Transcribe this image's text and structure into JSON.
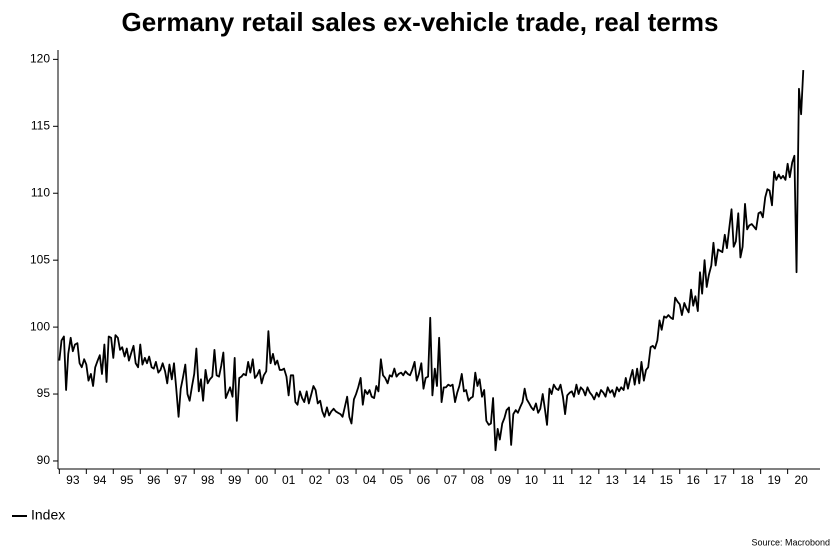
{
  "chart_data": {
    "type": "line",
    "title": "Germany retail sales ex-vehicle trade, real terms",
    "source": "Source: Macrobond",
    "xlim": [
      1992.95,
      2021.2
    ],
    "ylim": [
      89.4,
      120.7
    ],
    "yticks": [
      90,
      95,
      100,
      105,
      110,
      115,
      120
    ],
    "xticks": [
      {
        "value": 1993,
        "label": "93"
      },
      {
        "value": 1994,
        "label": "94"
      },
      {
        "value": 1995,
        "label": "95"
      },
      {
        "value": 1996,
        "label": "96"
      },
      {
        "value": 1997,
        "label": "97"
      },
      {
        "value": 1998,
        "label": "98"
      },
      {
        "value": 1999,
        "label": "99"
      },
      {
        "value": 2000,
        "label": "00"
      },
      {
        "value": 2001,
        "label": "01"
      },
      {
        "value": 2002,
        "label": "02"
      },
      {
        "value": 2003,
        "label": "03"
      },
      {
        "value": 2004,
        "label": "04"
      },
      {
        "value": 2005,
        "label": "05"
      },
      {
        "value": 2006,
        "label": "06"
      },
      {
        "value": 2007,
        "label": "07"
      },
      {
        "value": 2008,
        "label": "08"
      },
      {
        "value": 2009,
        "label": "09"
      },
      {
        "value": 2010,
        "label": "10"
      },
      {
        "value": 2011,
        "label": "11"
      },
      {
        "value": 2012,
        "label": "12"
      },
      {
        "value": 2013,
        "label": "13"
      },
      {
        "value": 2014,
        "label": "14"
      },
      {
        "value": 2015,
        "label": "15"
      },
      {
        "value": 2016,
        "label": "16"
      },
      {
        "value": 2017,
        "label": "17"
      },
      {
        "value": 2018,
        "label": "18"
      },
      {
        "value": 2019,
        "label": "19"
      },
      {
        "value": 2020,
        "label": "20"
      }
    ],
    "legend": "bottom-left",
    "x": [
      1993.0,
      1993.08,
      1993.17,
      1993.25,
      1993.33,
      1993.42,
      1993.5,
      1993.58,
      1993.67,
      1993.75,
      1993.83,
      1993.92,
      1994.0,
      1994.08,
      1994.17,
      1994.25,
      1994.33,
      1994.42,
      1994.5,
      1994.58,
      1994.67,
      1994.75,
      1994.83,
      1994.92,
      1995.0,
      1995.08,
      1995.17,
      1995.25,
      1995.33,
      1995.42,
      1995.5,
      1995.58,
      1995.67,
      1995.75,
      1995.83,
      1995.92,
      1996.0,
      1996.08,
      1996.17,
      1996.25,
      1996.33,
      1996.42,
      1996.5,
      1996.58,
      1996.67,
      1996.75,
      1996.83,
      1996.92,
      1997.0,
      1997.08,
      1997.17,
      1997.25,
      1997.33,
      1997.42,
      1997.5,
      1997.58,
      1997.67,
      1997.75,
      1997.83,
      1997.92,
      1998.0,
      1998.08,
      1998.17,
      1998.25,
      1998.33,
      1998.42,
      1998.5,
      1998.58,
      1998.67,
      1998.75,
      1998.83,
      1998.92,
      1999.0,
      1999.08,
      1999.17,
      1999.25,
      1999.33,
      1999.42,
      1999.5,
      1999.58,
      1999.67,
      1999.75,
      1999.83,
      1999.92,
      2000.0,
      2000.08,
      2000.17,
      2000.25,
      2000.33,
      2000.42,
      2000.5,
      2000.58,
      2000.67,
      2000.75,
      2000.83,
      2000.92,
      2001.0,
      2001.08,
      2001.17,
      2001.25,
      2001.33,
      2001.42,
      2001.5,
      2001.58,
      2001.67,
      2001.75,
      2001.83,
      2001.92,
      2002.0,
      2002.08,
      2002.17,
      2002.25,
      2002.33,
      2002.42,
      2002.5,
      2002.58,
      2002.67,
      2002.75,
      2002.83,
      2002.92,
      2003.0,
      2003.08,
      2003.17,
      2003.25,
      2003.33,
      2003.42,
      2003.5,
      2003.58,
      2003.67,
      2003.75,
      2003.83,
      2003.92,
      2004.0,
      2004.08,
      2004.17,
      2004.25,
      2004.33,
      2004.42,
      2004.5,
      2004.58,
      2004.67,
      2004.75,
      2004.83,
      2004.92,
      2005.0,
      2005.08,
      2005.17,
      2005.25,
      2005.33,
      2005.42,
      2005.5,
      2005.58,
      2005.67,
      2005.75,
      2005.83,
      2005.92,
      2006.0,
      2006.08,
      2006.17,
      2006.25,
      2006.33,
      2006.42,
      2006.5,
      2006.58,
      2006.67,
      2006.75,
      2006.83,
      2006.92,
      2007.0,
      2007.08,
      2007.17,
      2007.25,
      2007.33,
      2007.42,
      2007.5,
      2007.58,
      2007.67,
      2007.75,
      2007.83,
      2007.92,
      2008.0,
      2008.08,
      2008.17,
      2008.25,
      2008.33,
      2008.42,
      2008.5,
      2008.58,
      2008.67,
      2008.75,
      2008.83,
      2008.92,
      2009.0,
      2009.08,
      2009.17,
      2009.25,
      2009.33,
      2009.42,
      2009.5,
      2009.58,
      2009.67,
      2009.75,
      2009.83,
      2009.92,
      2010.0,
      2010.08,
      2010.17,
      2010.25,
      2010.33,
      2010.42,
      2010.5,
      2010.58,
      2010.67,
      2010.75,
      2010.83,
      2010.92,
      2011.0,
      2011.08,
      2011.17,
      2011.25,
      2011.33,
      2011.42,
      2011.5,
      2011.58,
      2011.67,
      2011.75,
      2011.83,
      2011.92,
      2012.0,
      2012.08,
      2012.17,
      2012.25,
      2012.33,
      2012.42,
      2012.5,
      2012.58,
      2012.67,
      2012.75,
      2012.83,
      2012.92,
      2013.0,
      2013.08,
      2013.17,
      2013.25,
      2013.33,
      2013.42,
      2013.5,
      2013.58,
      2013.67,
      2013.75,
      2013.83,
      2013.92,
      2014.0,
      2014.08,
      2014.17,
      2014.25,
      2014.33,
      2014.42,
      2014.5,
      2014.58,
      2014.67,
      2014.75,
      2014.83,
      2014.92,
      2015.0,
      2015.08,
      2015.17,
      2015.25,
      2015.33,
      2015.42,
      2015.5,
      2015.58,
      2015.67,
      2015.75,
      2015.83,
      2015.92,
      2016.0,
      2016.08,
      2016.17,
      2016.25,
      2016.33,
      2016.42,
      2016.5,
      2016.58,
      2016.67,
      2016.75,
      2016.83,
      2016.92,
      2017.0,
      2017.08,
      2017.17,
      2017.25,
      2017.33,
      2017.42,
      2017.5,
      2017.58,
      2017.67,
      2017.75,
      2017.83,
      2017.92,
      2018.0,
      2018.08,
      2018.17,
      2018.25,
      2018.33,
      2018.42,
      2018.5,
      2018.58,
      2018.67,
      2018.75,
      2018.83,
      2018.92,
      2019.0,
      2019.08,
      2019.17,
      2019.25,
      2019.33,
      2019.42,
      2019.5,
      2019.58,
      2019.67,
      2019.75,
      2019.83,
      2019.92,
      2020.0,
      2020.08,
      2020.17,
      2020.25,
      2020.33,
      2020.42,
      2020.5,
      2020.58
    ],
    "series": [
      {
        "name": "Index",
        "color": "#000000",
        "values": [
          97.5,
          99,
          99.3,
          95.3,
          98,
          99.2,
          98.2,
          98.7,
          98.8,
          97.3,
          97,
          97.6,
          97.2,
          96,
          96.5,
          95.6,
          97,
          97.5,
          97.9,
          96.5,
          98.7,
          95.9,
          99.3,
          99.2,
          97.7,
          99.4,
          99.2,
          98.3,
          98.5,
          97.8,
          98.4,
          97.5,
          98.1,
          98.6,
          97.3,
          97,
          98.7,
          97.2,
          97.7,
          97.3,
          97.8,
          97,
          96.9,
          97.4,
          96.6,
          96.8,
          97.3,
          96.7,
          95.8,
          97.2,
          96.1,
          97.3,
          95.5,
          93.3,
          95.4,
          96.2,
          97.2,
          95,
          94.5,
          95.6,
          96.5,
          98.4,
          95.2,
          96.1,
          94.5,
          96.8,
          95.8,
          96.1,
          96.3,
          98.3,
          96.4,
          96.3,
          97.1,
          98.1,
          94.7,
          95.1,
          95.5,
          94.8,
          97.7,
          93,
          96.2,
          96.3,
          96.5,
          96.4,
          97.4,
          96.6,
          97.6,
          96.2,
          96.4,
          96.8,
          95.8,
          96.4,
          96.7,
          99.7,
          97.3,
          98,
          97.2,
          97.5,
          96.8,
          96.8,
          96.9,
          96.3,
          94.9,
          96.4,
          96.4,
          94.4,
          94.2,
          95.2,
          94.7,
          94.4,
          95.2,
          94.3,
          94.9,
          95.6,
          95.3,
          94.3,
          94.5,
          93.7,
          93.3,
          94,
          93.4,
          93.7,
          93.9,
          93.7,
          93.6,
          93.5,
          93.3,
          94,
          94.8,
          93.3,
          92.8,
          94.6,
          95,
          95.5,
          96.2,
          94.2,
          95.3,
          95,
          95.3,
          94.8,
          94.7,
          95.6,
          95.2,
          97.6,
          96.4,
          96.2,
          95.8,
          96.4,
          96.3,
          96.9,
          96.3,
          96.5,
          96.6,
          96.4,
          96.7,
          96.5,
          96.4,
          96.8,
          97.4,
          96,
          96.5,
          97.3,
          95.4,
          96.2,
          96.3,
          100.7,
          94.9,
          96.9,
          95.6,
          99.2,
          94.4,
          95.5,
          95.5,
          95.7,
          95.6,
          95.7,
          94.4,
          95.1,
          95.6,
          96.5,
          95.2,
          95.3,
          94.5,
          94.7,
          94.8,
          96.6,
          95.6,
          96.1,
          94.8,
          95.3,
          93,
          92.7,
          92.8,
          94.7,
          90.8,
          92.4,
          91.6,
          92.8,
          93.2,
          93.8,
          94,
          91.2,
          93.5,
          93.8,
          93.6,
          94,
          94.4,
          95.4,
          94.6,
          94.3,
          94,
          93.8,
          94.3,
          93.6,
          93.9,
          95,
          93.9,
          92.7,
          95.4,
          95,
          95.7,
          95.4,
          95.3,
          95.7,
          94.8,
          93.5,
          94.9,
          95.1,
          95.2,
          94.8,
          95.7,
          95,
          95.5,
          95.3,
          94.9,
          95.5,
          95.1,
          94.9,
          94.6,
          95.1,
          94.8,
          95.3,
          95.1,
          94.8,
          95.5,
          95.1,
          95.3,
          94.8,
          95.5,
          95.2,
          95.5,
          95.3,
          96.2,
          95.4,
          96.2,
          96.8,
          95.7,
          96.9,
          95.8,
          97.4,
          96,
          96.8,
          97,
          98.5,
          98.6,
          98.4,
          99,
          100.5,
          99.8,
          100.8,
          100.7,
          100.9,
          100.7,
          100.6,
          102.2,
          101.9,
          101.7,
          100.9,
          101.8,
          101.4,
          101.1,
          102.8,
          101.6,
          102.3,
          101.2,
          104.1,
          102.5,
          105,
          103,
          103.9,
          104.6,
          106.3,
          104.6,
          105.8,
          105.7,
          105.6,
          106.9,
          105.9,
          107.3,
          108.8,
          106,
          106.4,
          108.5,
          105.2,
          106,
          109.2,
          107.3,
          107.6,
          107.7,
          107.5,
          107.3,
          108.5,
          108.6,
          108.2,
          109.7,
          110.3,
          110.2,
          109.1,
          111.6,
          111,
          111.4,
          111.1,
          111.3,
          111,
          112.2,
          111.2,
          112.3,
          112.8,
          104.1,
          117.8,
          115.9,
          119.2
        ]
      }
    ]
  }
}
